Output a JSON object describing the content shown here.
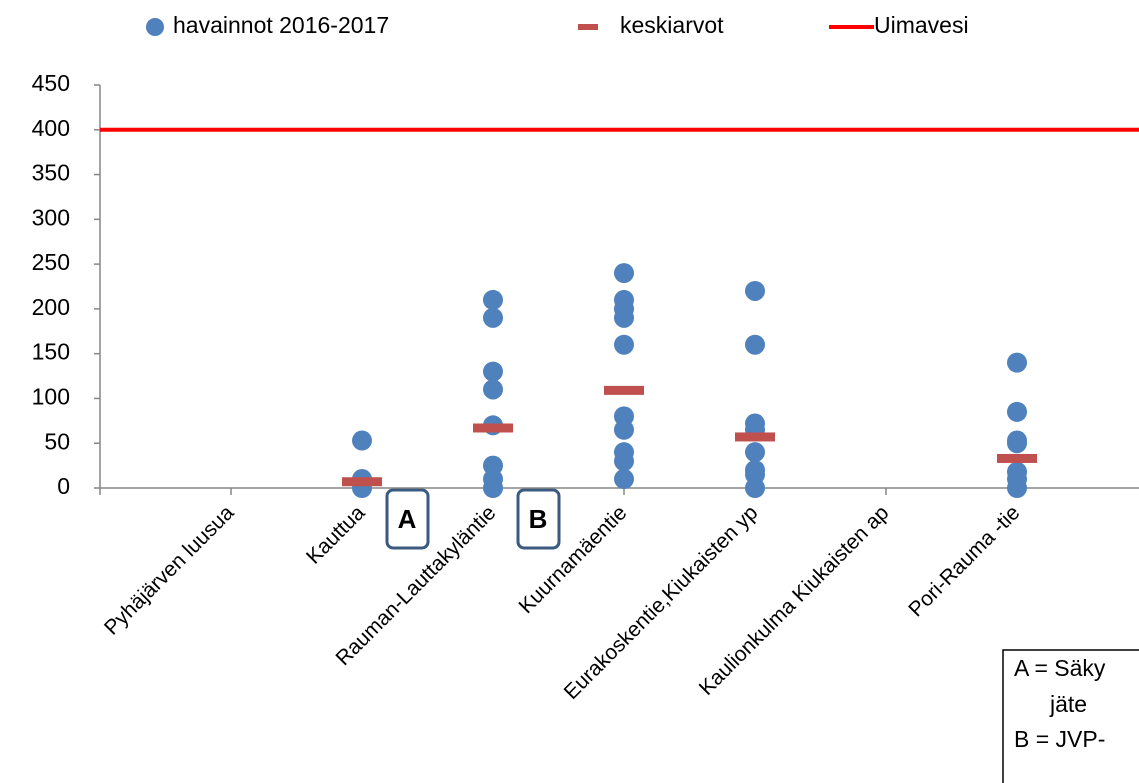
{
  "chart_data": {
    "type": "scatter",
    "categories": [
      null,
      "Pyhäjärven luusua",
      "Kauttua",
      "Rauman-Lauttakyläntie",
      "Kuurnamäentie",
      "Eurakoskentie,Kiukaisten yp",
      "Kaulionkulma Kiukaisten ap",
      "Pori-Rauma -tie"
    ],
    "series": [
      {
        "name": "havainnot 2016-2017",
        "color": "#4f81bd",
        "values": [
          null,
          null,
          [
            53,
            10,
            0
          ],
          [
            210,
            190,
            130,
            110,
            70,
            25,
            10,
            0
          ],
          [
            240,
            210,
            200,
            190,
            160,
            80,
            65,
            40,
            30,
            10
          ],
          [
            220,
            160,
            72,
            65,
            40,
            20,
            15,
            0
          ],
          null,
          [
            140,
            85,
            53,
            50,
            18,
            10,
            0
          ]
        ]
      },
      {
        "name": "keskiarvot",
        "color": "#c0504d",
        "values": [
          null,
          null,
          7,
          67,
          109,
          57,
          null,
          33
        ]
      }
    ],
    "reference_lines": [
      {
        "name": "Uimavesi",
        "value": 400,
        "color": "#ff0000"
      }
    ],
    "ylim": [
      0,
      450
    ],
    "yticks": [
      0,
      50,
      100,
      150,
      200,
      250,
      300,
      350,
      400,
      450
    ],
    "grid": false,
    "legend": "top",
    "annotations": [
      "A",
      "B"
    ],
    "note": [
      "A = Säky",
      "jäte",
      "B = JVP-"
    ]
  }
}
